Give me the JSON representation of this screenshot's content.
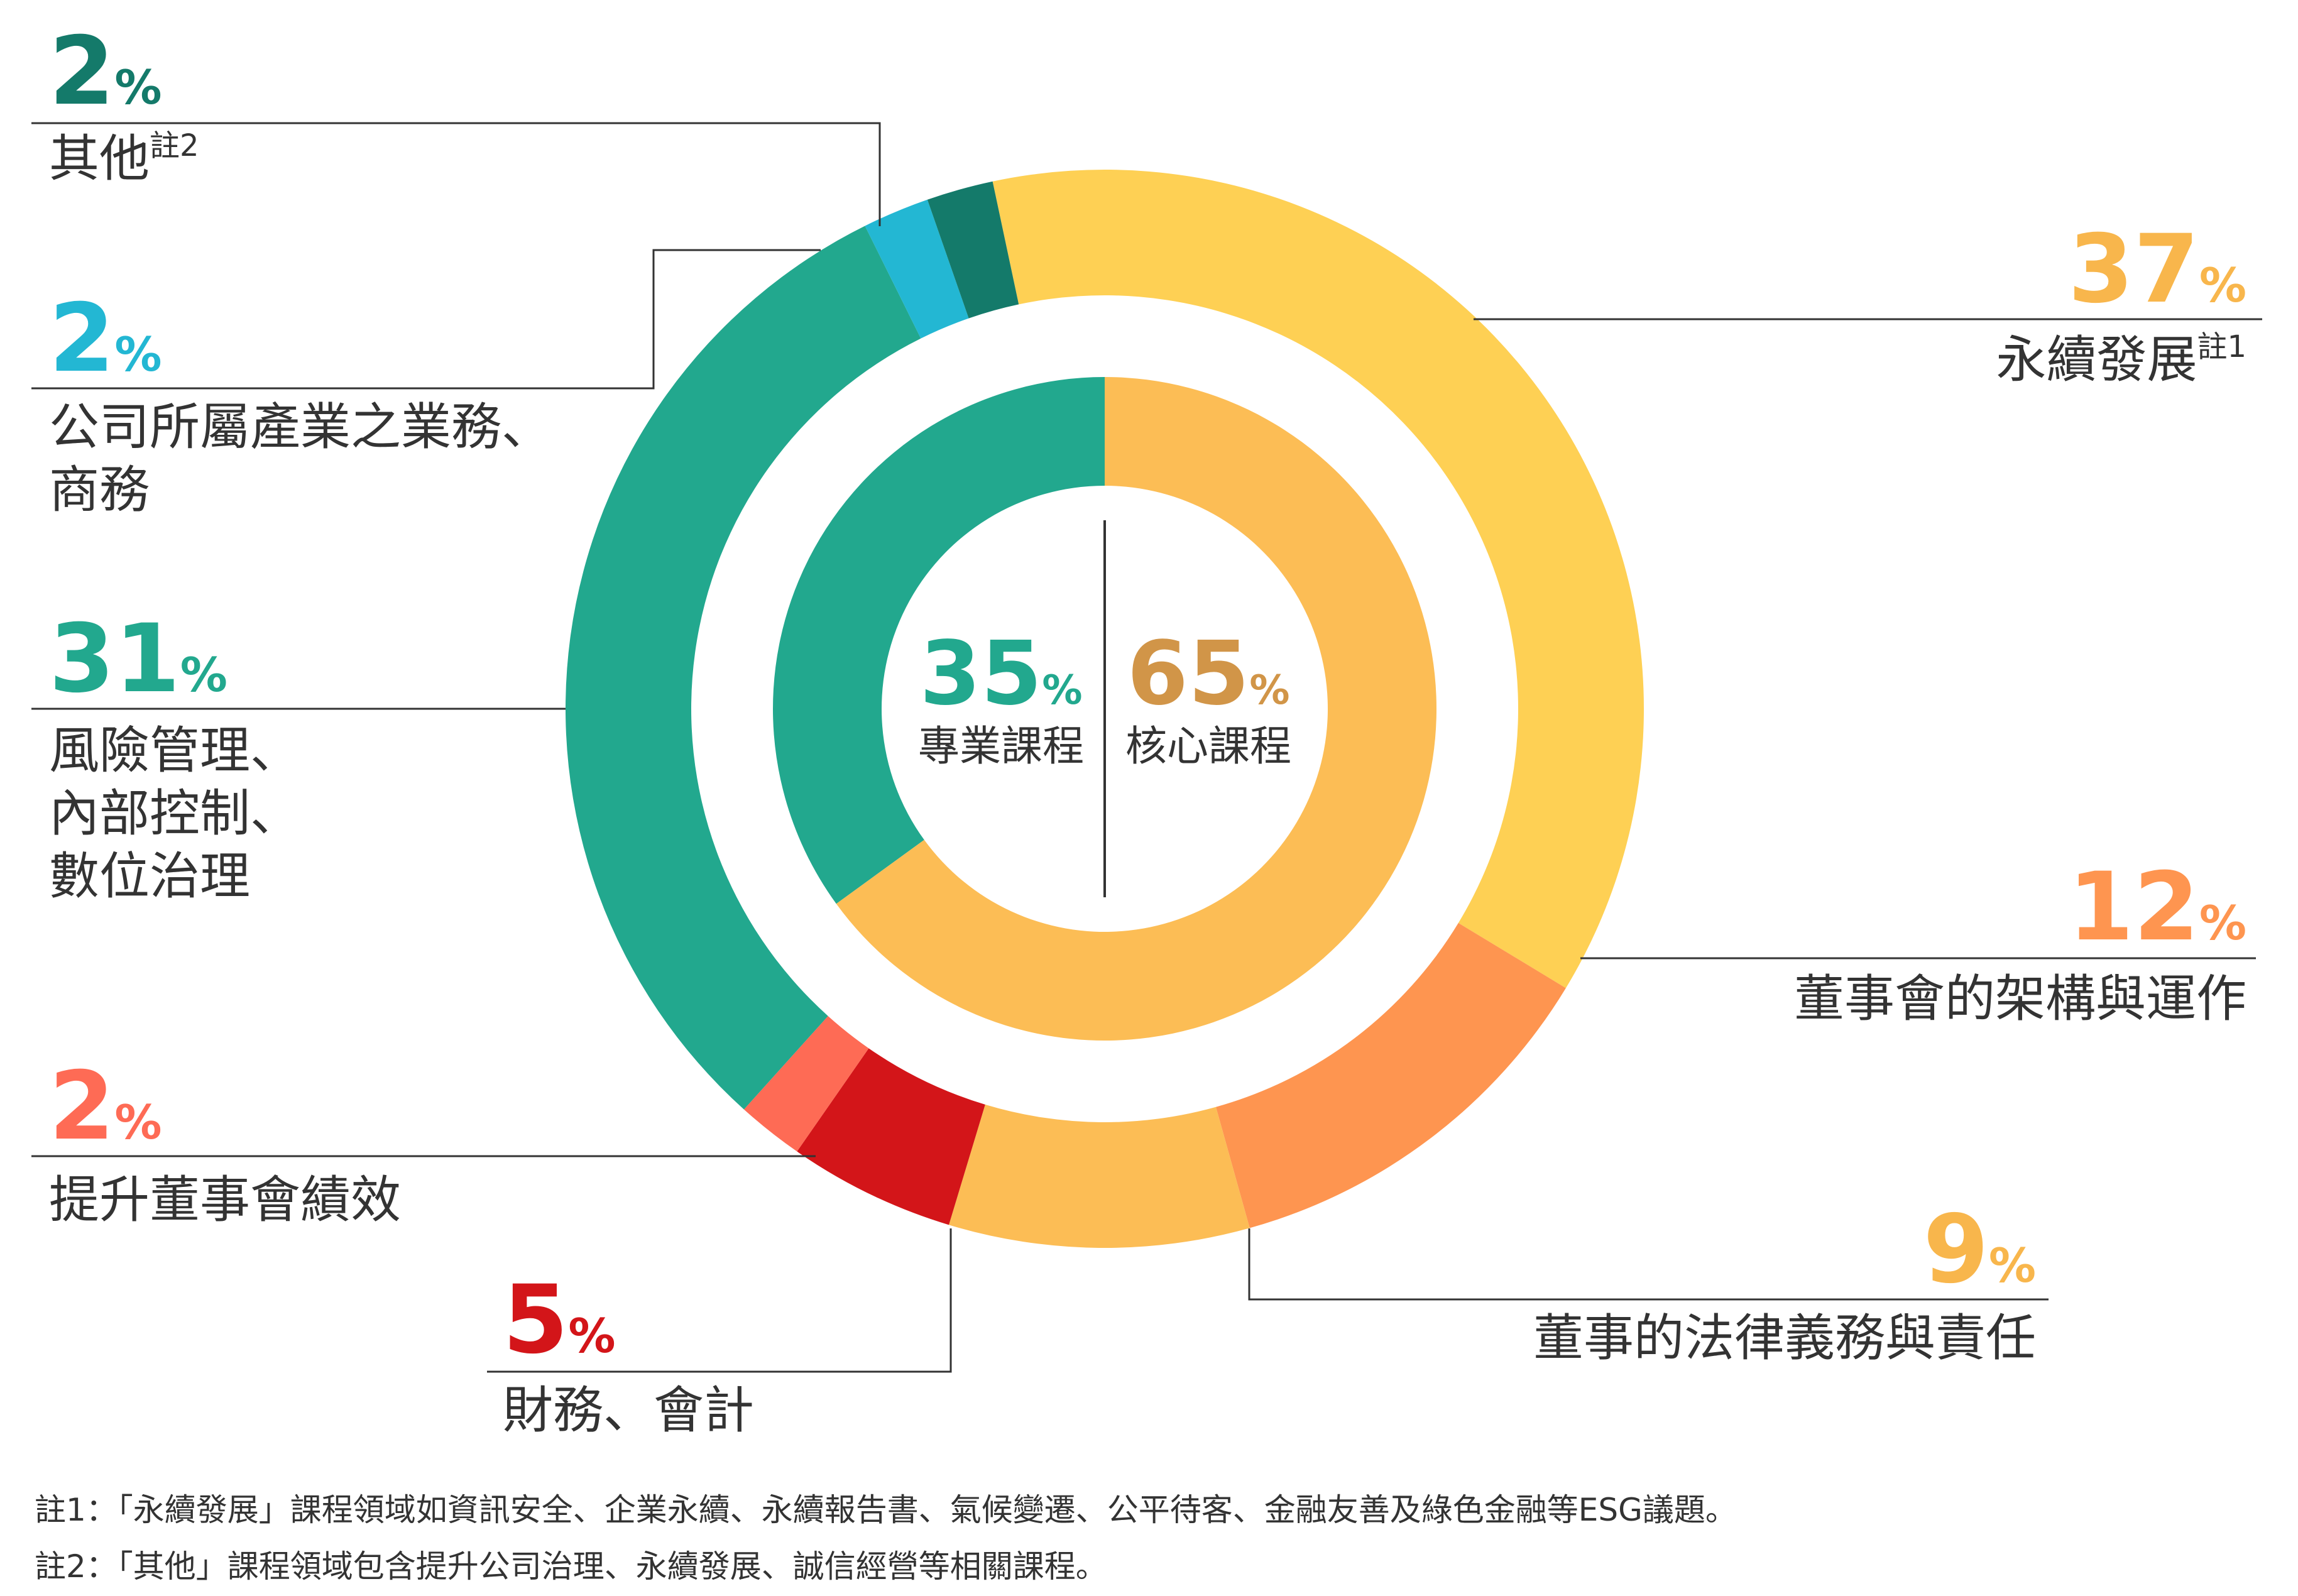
{
  "chart_data": {
    "type": "pie",
    "variant": "nested-donut",
    "inner": {
      "categories": [
        "專業課程",
        "核心課程"
      ],
      "values": [
        35,
        65
      ],
      "colors": [
        "#22a88e",
        "#fcbd55"
      ],
      "label_colors": [
        "#22a88e",
        "#d19548"
      ]
    },
    "outer": {
      "categories": [
        "永續發展",
        "董事會的架構與運作",
        "董事的法律義務與責任",
        "財務、會計",
        "提升董事會績效",
        "風險管理、內部控制、數位治理",
        "公司所屬產業之業務、商務",
        "其他"
      ],
      "values": [
        37,
        12,
        9,
        5,
        2,
        31,
        2,
        2
      ],
      "colors": [
        "#fed054",
        "#fe9550",
        "#fcbd55",
        "#d31519",
        "#fe6b55",
        "#22a88e",
        "#23b7d3",
        "#147a6a"
      ]
    },
    "pct_symbol": "%",
    "callouts": [
      {
        "value": "37",
        "lines": [
          "永續發展"
        ],
        "sup": "註1",
        "color": "#f8b64c"
      },
      {
        "value": "12",
        "lines": [
          "董事會的架構與運作"
        ],
        "sup": "",
        "color": "#fe9550"
      },
      {
        "value": "9",
        "lines": [
          "董事的法律義務與責任"
        ],
        "sup": "",
        "color": "#f8b64c"
      },
      {
        "value": "5",
        "lines": [
          "財務、會計"
        ],
        "sup": "",
        "color": "#d31519"
      },
      {
        "value": "2",
        "lines": [
          "提升董事會績效"
        ],
        "sup": "",
        "color": "#fe6b55"
      },
      {
        "value": "31",
        "lines": [
          "風險管理、",
          "內部控制、",
          "數位治理"
        ],
        "sup": "",
        "color": "#22a88e"
      },
      {
        "value": "2",
        "lines": [
          "公司所屬產業之業務、",
          "商務"
        ],
        "sup": "",
        "color": "#23b7d3"
      },
      {
        "value": "2",
        "lines": [
          "其他"
        ],
        "sup": "註2",
        "color": "#147a6a"
      }
    ],
    "center": [
      {
        "value": "35",
        "label": "專業課程",
        "color": "#22a88e"
      },
      {
        "value": "65",
        "label": "核心課程",
        "color": "#d19548"
      }
    ]
  },
  "notes": [
    "註1：「永續發展」課程領域如資訊安全、企業永續、永續報告書、氣候變遷、公平待客、金融友善及綠色金融等ESG議題。",
    "註2：「其他」課程領域包含提升公司治理、永續發展、誠信經營等相關課程。"
  ]
}
